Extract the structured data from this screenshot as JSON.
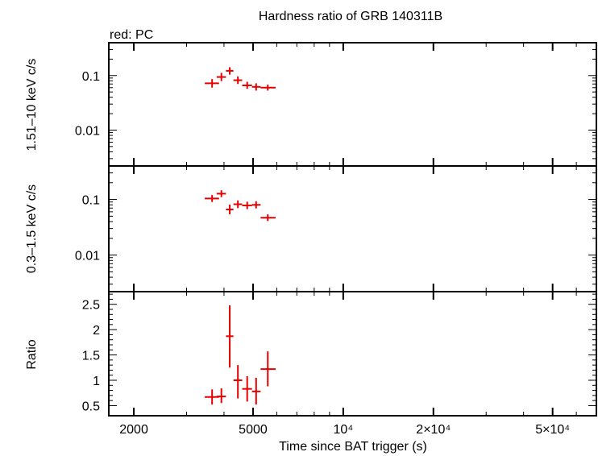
{
  "chart_data": {
    "type": "scatter",
    "title": "Hardness ratio of GRB 140311B",
    "subtitle": "red: PC",
    "xlabel": "Time since BAT trigger (s)",
    "x_scale": "log",
    "xlim": [
      1650,
      70000
    ],
    "x_ticks": [
      {
        "value": 2000,
        "label": "2000"
      },
      {
        "value": 5000,
        "label": "5000"
      },
      {
        "value": 10000,
        "label": "10⁴"
      },
      {
        "value": 20000,
        "label": "2×10⁴"
      },
      {
        "value": 50000,
        "label": "5×10⁴"
      }
    ],
    "series_color": "#e60000",
    "panels": [
      {
        "id": "hard",
        "ylabel": "1.51–10 keV c/s",
        "y_scale": "log",
        "ylim": [
          0.0022,
          0.4
        ],
        "y_ticks": [
          {
            "value": 0.1,
            "label": "0.1"
          },
          {
            "value": 0.01,
            "label": "0.01"
          }
        ],
        "points": [
          {
            "x": 3650,
            "xlo": 3450,
            "xhi": 3850,
            "y": 0.072,
            "ylo": 0.06,
            "yhi": 0.086
          },
          {
            "x": 3920,
            "xlo": 3780,
            "xhi": 4060,
            "y": 0.094,
            "ylo": 0.079,
            "yhi": 0.112
          },
          {
            "x": 4180,
            "xlo": 4060,
            "xhi": 4300,
            "y": 0.122,
            "ylo": 0.104,
            "yhi": 0.142
          },
          {
            "x": 4450,
            "xlo": 4300,
            "xhi": 4600,
            "y": 0.082,
            "ylo": 0.07,
            "yhi": 0.096
          },
          {
            "x": 4780,
            "xlo": 4600,
            "xhi": 4960,
            "y": 0.066,
            "ylo": 0.057,
            "yhi": 0.077
          },
          {
            "x": 5120,
            "xlo": 4960,
            "xhi": 5300,
            "y": 0.062,
            "ylo": 0.053,
            "yhi": 0.072
          },
          {
            "x": 5600,
            "xlo": 5300,
            "xhi": 5950,
            "y": 0.06,
            "ylo": 0.053,
            "yhi": 0.068
          }
        ]
      },
      {
        "id": "soft",
        "ylabel": "0.3–1.5 keV c/s",
        "y_scale": "log",
        "ylim": [
          0.0022,
          0.4
        ],
        "y_ticks": [
          {
            "value": 0.1,
            "label": "0.1"
          },
          {
            "value": 0.01,
            "label": "0.01"
          }
        ],
        "points": [
          {
            "x": 3650,
            "xlo": 3450,
            "xhi": 3850,
            "y": 0.104,
            "ylo": 0.09,
            "yhi": 0.12
          },
          {
            "x": 3920,
            "xlo": 3780,
            "xhi": 4060,
            "y": 0.127,
            "ylo": 0.11,
            "yhi": 0.146
          },
          {
            "x": 4180,
            "xlo": 4060,
            "xhi": 4300,
            "y": 0.066,
            "ylo": 0.054,
            "yhi": 0.081
          },
          {
            "x": 4450,
            "xlo": 4300,
            "xhi": 4600,
            "y": 0.082,
            "ylo": 0.07,
            "yhi": 0.096
          },
          {
            "x": 4780,
            "xlo": 4600,
            "xhi": 4960,
            "y": 0.078,
            "ylo": 0.067,
            "yhi": 0.091
          },
          {
            "x": 5120,
            "xlo": 4960,
            "xhi": 5300,
            "y": 0.08,
            "ylo": 0.069,
            "yhi": 0.093
          },
          {
            "x": 5600,
            "xlo": 5300,
            "xhi": 5950,
            "y": 0.047,
            "ylo": 0.041,
            "yhi": 0.054
          }
        ]
      },
      {
        "id": "ratio",
        "ylabel": "Ratio",
        "y_scale": "linear",
        "ylim": [
          0.3,
          2.75
        ],
        "y_ticks": [
          {
            "value": 0.5,
            "label": "0.5"
          },
          {
            "value": 1,
            "label": "1"
          },
          {
            "value": 1.5,
            "label": "1.5"
          },
          {
            "value": 2,
            "label": "2"
          },
          {
            "value": 2.5,
            "label": "2.5"
          }
        ],
        "points": [
          {
            "x": 3650,
            "xlo": 3450,
            "xhi": 3850,
            "y": 0.67,
            "ylo": 0.52,
            "yhi": 0.82
          },
          {
            "x": 3920,
            "xlo": 3780,
            "xhi": 4060,
            "y": 0.68,
            "ylo": 0.55,
            "yhi": 0.84
          },
          {
            "x": 4180,
            "xlo": 4060,
            "xhi": 4300,
            "y": 1.87,
            "ylo": 1.25,
            "yhi": 2.48
          },
          {
            "x": 4450,
            "xlo": 4300,
            "xhi": 4600,
            "y": 1.0,
            "ylo": 0.64,
            "yhi": 1.3
          },
          {
            "x": 4780,
            "xlo": 4600,
            "xhi": 4960,
            "y": 0.83,
            "ylo": 0.58,
            "yhi": 1.08
          },
          {
            "x": 5120,
            "xlo": 4960,
            "xhi": 5300,
            "y": 0.78,
            "ylo": 0.52,
            "yhi": 1.05
          },
          {
            "x": 5600,
            "xlo": 5300,
            "xhi": 5950,
            "y": 1.22,
            "ylo": 0.88,
            "yhi": 1.57
          }
        ]
      }
    ]
  }
}
